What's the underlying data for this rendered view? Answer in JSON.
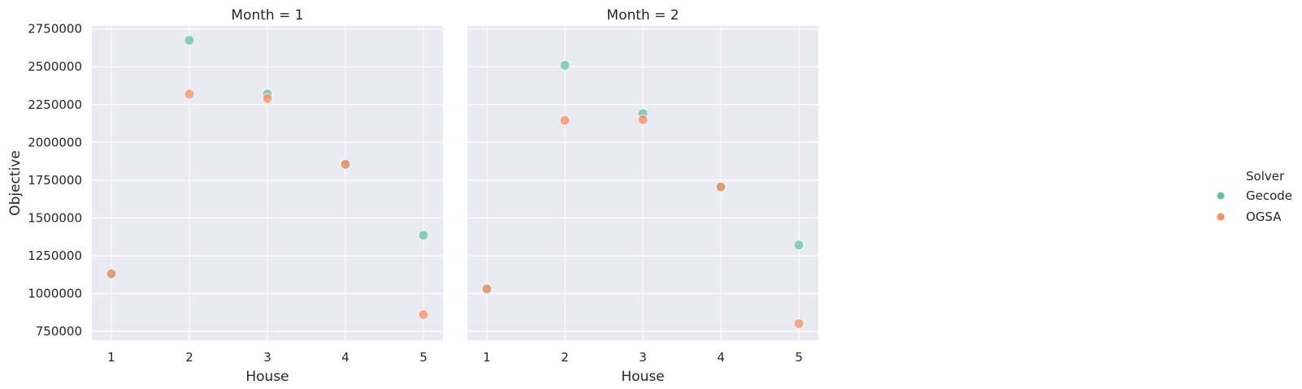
{
  "chart_data": {
    "type": "scatter",
    "xlabel": "House",
    "ylabel": "Objective",
    "x_ticks": [
      1,
      2,
      3,
      4,
      5
    ],
    "y_ticks": [
      750000,
      1000000,
      1250000,
      1500000,
      1750000,
      2000000,
      2250000,
      2500000,
      2750000
    ],
    "y_tick_labels": [
      "750000",
      "1000000",
      "1250000",
      "1500000",
      "1750000",
      "2000000",
      "2250000",
      "2500000",
      "2750000"
    ],
    "xlim": [
      0.75,
      5.25
    ],
    "ylim": [
      690000,
      2770000
    ],
    "grid": true,
    "legend": {
      "title": "Solver",
      "placement": "right",
      "entries": [
        {
          "name": "Gecode",
          "color": "#66c2a5"
        },
        {
          "name": "OGSA",
          "color": "#fc8d62"
        }
      ]
    },
    "panels": [
      {
        "title": "Month = 1",
        "series": [
          {
            "name": "Gecode",
            "color": "#66c2a5",
            "x": [
              1,
              2,
              3,
              4,
              5
            ],
            "y": [
              1130000,
              2675000,
              2320000,
              1855000,
              1385000
            ]
          },
          {
            "name": "OGSA",
            "color": "#fc8d62",
            "x": [
              1,
              2,
              3,
              4,
              5
            ],
            "y": [
              1130000,
              2320000,
              2290000,
              1855000,
              860000
            ]
          }
        ]
      },
      {
        "title": "Month = 2",
        "series": [
          {
            "name": "Gecode",
            "color": "#66c2a5",
            "x": [
              1,
              2,
              3,
              4,
              5
            ],
            "y": [
              1030000,
              2510000,
              2190000,
              1705000,
              1320000
            ]
          },
          {
            "name": "OGSA",
            "color": "#fc8d62",
            "x": [
              1,
              2,
              3,
              4,
              5
            ],
            "y": [
              1030000,
              2145000,
              2150000,
              1705000,
              800000
            ]
          }
        ]
      }
    ]
  }
}
